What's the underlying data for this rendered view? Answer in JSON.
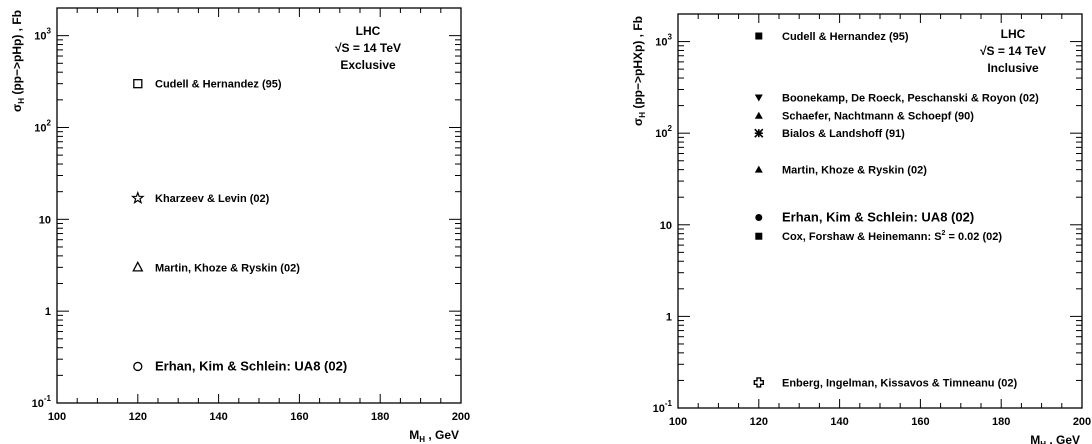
{
  "chart_data": [
    {
      "type": "scatter",
      "x_axis": {
        "label": "M_H , GeV",
        "main": "M",
        "sub": "H",
        "rest": " , GeV",
        "range": [
          100,
          200
        ],
        "ticks": [
          100,
          120,
          140,
          160,
          180,
          200
        ]
      },
      "y_axis": {
        "label": "σ_H (pp->pHp) , Fb",
        "sigma": "σ",
        "sub": "H",
        "rest": " (pp−>pHp) ,  Fb",
        "scale": "log",
        "range": [
          0.1,
          2000
        ],
        "ticks": [
          {
            "v": 0.1,
            "base": "10",
            "exp": "-1"
          },
          {
            "v": 1,
            "base": "1",
            "exp": ""
          },
          {
            "v": 10,
            "base": "10",
            "exp": ""
          },
          {
            "v": 100,
            "base": "10",
            "exp": "2"
          },
          {
            "v": 1000,
            "base": "10",
            "exp": "3"
          }
        ]
      },
      "info": [
        "LHC",
        "√S = 14  TeV",
        "Exclusive"
      ],
      "points": [
        {
          "x": 120,
          "y": 300,
          "marker": "open-square",
          "label": "Cudell & Hernandez (95)"
        },
        {
          "x": 120,
          "y": 17,
          "marker": "open-star",
          "label": "Kharzeev & Levin (02)"
        },
        {
          "x": 120,
          "y": 3.0,
          "marker": "open-triangle",
          "label": "Martin, Khoze & Ryskin (02)"
        },
        {
          "x": 120,
          "y": 0.25,
          "marker": "open-circle",
          "label": "Erhan, Kim & Schlein: UA8  (02)",
          "big": true
        }
      ]
    },
    {
      "type": "scatter",
      "x_axis": {
        "label": "M_H , GeV",
        "main": "M",
        "sub": "H",
        "rest": " , GeV",
        "range": [
          100,
          200
        ],
        "ticks": [
          100,
          120,
          140,
          160,
          180,
          200
        ]
      },
      "y_axis": {
        "label": "σ_H (pp->pHXp) , Fb",
        "sigma": "σ",
        "sub": "H",
        "rest": " (pp−>pHXp) ,  Fb",
        "scale": "log",
        "range": [
          0.1,
          2000
        ],
        "ticks": [
          {
            "v": 0.1,
            "base": "10",
            "exp": "-1"
          },
          {
            "v": 1,
            "base": "1",
            "exp": ""
          },
          {
            "v": 10,
            "base": "10",
            "exp": ""
          },
          {
            "v": 100,
            "base": "10",
            "exp": "2"
          },
          {
            "v": 1000,
            "base": "10",
            "exp": "3"
          }
        ]
      },
      "info": [
        "LHC",
        "√S = 14  TeV",
        "Inclusive"
      ],
      "points": [
        {
          "x": 120,
          "y": 1150,
          "marker": "filled-square",
          "label": "Cudell & Hernandez (95)"
        },
        {
          "x": 120,
          "y": 245,
          "marker": "filled-down-triangle",
          "label": "Boonekamp, De Roeck, Peschanski & Royon (02)"
        },
        {
          "x": 120,
          "y": 155,
          "marker": "filled-triangle",
          "label": "Schaefer, Nachtmann & Schoepf (90)"
        },
        {
          "x": 120,
          "y": 100,
          "marker": "asterisk",
          "label": "Bialos & Landshoff (91)"
        },
        {
          "x": 120,
          "y": 40,
          "marker": "filled-triangle",
          "label": "Martin, Khoze & Ryskin (02)"
        },
        {
          "x": 120,
          "y": 12,
          "marker": "filled-circle",
          "label": "Erhan, Kim & Schlein: UA8  (02)",
          "big": true
        },
        {
          "x": 120,
          "y": 7.5,
          "marker": "filled-square",
          "label": "Cox, Forshaw & Heinemann: S",
          "sup": "2",
          "tail": " = 0.02 (02)"
        },
        {
          "x": 120,
          "y": 0.19,
          "marker": "open-cross",
          "label": "Enberg, Ingelman, Kissavos & Timneanu (02)"
        }
      ]
    }
  ]
}
